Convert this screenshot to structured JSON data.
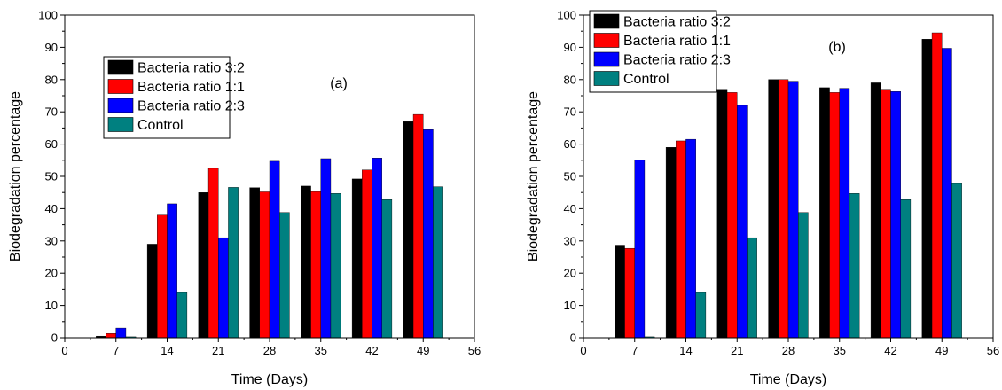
{
  "chart_data": [
    {
      "type": "bar",
      "panel_label": "(a)",
      "xlabel": "Time (Days)",
      "ylabel": "Biodegradation percentage",
      "xlim": [
        0,
        56
      ],
      "ylim": [
        0,
        100
      ],
      "x_ticks": [
        0,
        7,
        14,
        21,
        28,
        35,
        42,
        49,
        56
      ],
      "y_ticks": [
        0,
        10,
        20,
        30,
        40,
        50,
        60,
        70,
        80,
        90,
        100
      ],
      "x": [
        7,
        14,
        21,
        28,
        35,
        42,
        49
      ],
      "legend_position": "upper-left",
      "series": [
        {
          "name": "Bacteria ratio 3:2",
          "color": "#000000",
          "values": [
            0.5,
            29,
            45,
            46.5,
            47,
            49.2,
            67
          ]
        },
        {
          "name": "Bacteria ratio 1:1",
          "color": "#ff0000",
          "values": [
            1.3,
            38,
            52.5,
            45.2,
            45.3,
            52,
            69.2
          ]
        },
        {
          "name": "Bacteria ratio 2:3",
          "color": "#0000ff",
          "values": [
            3,
            41.5,
            31,
            54.7,
            55.5,
            55.7,
            64.5
          ]
        },
        {
          "name": "Control",
          "color": "#008080",
          "values": [
            0.3,
            14,
            46.6,
            38.8,
            44.7,
            42.8,
            46.8
          ]
        }
      ]
    },
    {
      "type": "bar",
      "panel_label": "(b)",
      "xlabel": "Time (Days)",
      "ylabel": "Biodegradation percentage",
      "xlim": [
        0,
        56
      ],
      "ylim": [
        0,
        100
      ],
      "x_ticks": [
        0,
        7,
        14,
        21,
        28,
        35,
        42,
        49,
        56
      ],
      "y_ticks": [
        0,
        10,
        20,
        30,
        40,
        50,
        60,
        70,
        80,
        90,
        100
      ],
      "x": [
        7,
        14,
        21,
        28,
        35,
        42,
        49
      ],
      "legend_position": "top-left",
      "series": [
        {
          "name": "Bacteria ratio 3:2",
          "color": "#000000",
          "values": [
            28.7,
            59,
            77,
            80,
            77.5,
            79,
            92.5
          ]
        },
        {
          "name": "Bacteria ratio 1:1",
          "color": "#ff0000",
          "values": [
            27.7,
            61,
            76,
            80,
            76,
            77,
            94.5
          ]
        },
        {
          "name": "Bacteria ratio 2:3",
          "color": "#0000ff",
          "values": [
            55,
            61.5,
            72,
            79.5,
            77.3,
            76.3,
            89.7
          ]
        },
        {
          "name": "Control",
          "color": "#008080",
          "values": [
            0.3,
            14,
            31,
            38.8,
            44.7,
            42.8,
            47.8
          ]
        }
      ]
    }
  ]
}
